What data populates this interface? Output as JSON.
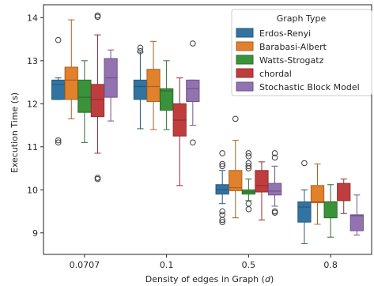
{
  "chart_data": {
    "type": "boxplot",
    "xlabel_prefix": "Density of edges in Graph (",
    "xlabel_var": "d",
    "xlabel_suffix": ")",
    "ylabel": "Execution Time (s)",
    "ylim": [
      8.5,
      14.3
    ],
    "yticks": [
      "9",
      "10",
      "11",
      "12",
      "13",
      "14"
    ],
    "categories": [
      "0.0707",
      "0.1",
      "0.5",
      "0.8"
    ],
    "legend": {
      "title": "Graph Type",
      "placement": "top-right"
    },
    "grid": false,
    "series": [
      {
        "name": "Erdos-Renyi",
        "color": "#3274a1",
        "boxes": [
          {
            "whislo": 12.1,
            "q1": 12.1,
            "med": 12.45,
            "q3": 12.55,
            "whishi": 12.6,
            "fliers": [
              13.48,
              11.15,
              11.1
            ]
          },
          {
            "whislo": 11.42,
            "q1": 12.1,
            "med": 12.4,
            "q3": 12.55,
            "whishi": 13.2,
            "fliers": [
              13.3,
              13.22
            ]
          },
          {
            "whislo": 9.68,
            "q1": 9.9,
            "med": 10.0,
            "q3": 10.12,
            "whishi": 10.45,
            "fliers": [
              10.85,
              10.6,
              10.55,
              9.5,
              9.42,
              9.3,
              9.25
            ]
          },
          {
            "whislo": 8.75,
            "q1": 9.25,
            "med": 9.6,
            "q3": 9.72,
            "whishi": 10.0,
            "fliers": [
              10.62
            ]
          }
        ]
      },
      {
        "name": "Barabasi-Albert",
        "color": "#e1812c",
        "boxes": [
          {
            "whislo": 11.65,
            "q1": 12.1,
            "med": 12.55,
            "q3": 12.85,
            "whishi": 13.95,
            "fliers": []
          },
          {
            "whislo": 11.4,
            "q1": 12.05,
            "med": 12.4,
            "q3": 12.8,
            "whishi": 13.45,
            "fliers": []
          },
          {
            "whislo": 9.35,
            "q1": 9.98,
            "med": 10.05,
            "q3": 10.45,
            "whishi": 11.15,
            "fliers": [
              11.65
            ]
          },
          {
            "whislo": 9.2,
            "q1": 9.7,
            "med": 9.72,
            "q3": 10.1,
            "whishi": 10.6,
            "fliers": []
          }
        ]
      },
      {
        "name": "Watts-Strogatz",
        "color": "#3a923a",
        "boxes": [
          {
            "whislo": 11.1,
            "q1": 11.8,
            "med": 12.15,
            "q3": 12.55,
            "whishi": 13.0,
            "fliers": []
          },
          {
            "whislo": 11.4,
            "q1": 11.85,
            "med": 12.3,
            "q3": 12.35,
            "whishi": 13.0,
            "fliers": []
          },
          {
            "whislo": 9.75,
            "q1": 9.9,
            "med": 9.95,
            "q3": 10.0,
            "whishi": 10.25,
            "fliers": [
              10.85,
              10.78,
              10.62,
              10.55,
              10.5,
              9.68,
              9.55
            ]
          },
          {
            "whislo": 8.9,
            "q1": 9.35,
            "med": 9.72,
            "q3": 9.72,
            "whishi": 10.12,
            "fliers": []
          }
        ]
      },
      {
        "name": "chordal",
        "color": "#c03d3e",
        "boxes": [
          {
            "whislo": 10.85,
            "q1": 11.7,
            "med": 12.1,
            "q3": 12.45,
            "whishi": 13.6,
            "fliers": [
              14.05,
              14.02,
              10.28,
              10.25
            ]
          },
          {
            "whislo": 10.1,
            "q1": 11.25,
            "med": 11.62,
            "q3": 12.0,
            "whishi": 12.6,
            "fliers": []
          },
          {
            "whislo": 9.3,
            "q1": 9.95,
            "med": 10.1,
            "q3": 10.45,
            "whishi": 10.65,
            "fliers": []
          },
          {
            "whislo": 9.45,
            "q1": 9.75,
            "med": 9.75,
            "q3": 10.15,
            "whishi": 10.25,
            "fliers": []
          }
        ]
      },
      {
        "name": "Stochastic Block Model",
        "color": "#9372b2",
        "boxes": [
          {
            "whislo": 11.6,
            "q1": 12.15,
            "med": 12.6,
            "q3": 13.05,
            "whishi": 13.25,
            "fliers": []
          },
          {
            "whislo": 11.5,
            "q1": 12.05,
            "med": 12.35,
            "q3": 12.55,
            "whishi": 12.55,
            "fliers": [
              11.1,
              13.4
            ]
          },
          {
            "whislo": 9.62,
            "q1": 9.88,
            "med": 9.97,
            "q3": 10.15,
            "whishi": 10.55,
            "fliers": [
              10.85,
              10.75,
              9.5,
              9.47
            ]
          },
          {
            "whislo": 8.95,
            "q1": 9.05,
            "med": 9.4,
            "q3": 9.42,
            "whishi": 9.88,
            "fliers": []
          }
        ]
      }
    ]
  }
}
